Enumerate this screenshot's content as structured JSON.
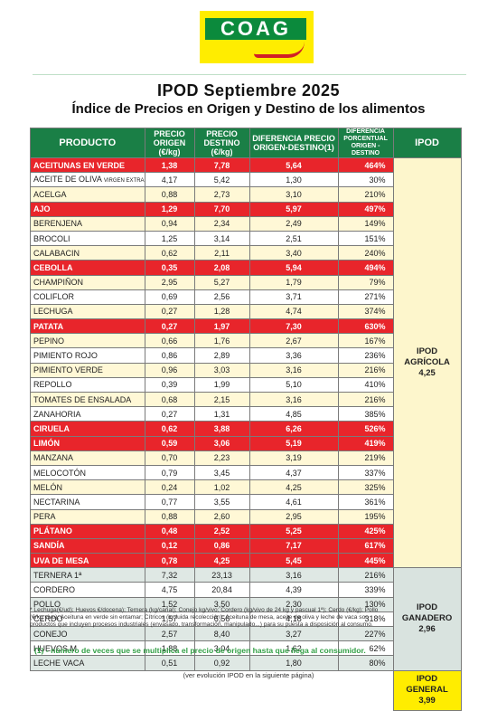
{
  "logo": {
    "text": "COAG"
  },
  "header": {
    "title": "IPOD Septiembre 2025",
    "subtitle": "Índice de Precios en Origen y Destino de los alimentos"
  },
  "table": {
    "columns": {
      "producto": "PRODUCTO",
      "origen": "PRECIO ORIGEN (€/kg)",
      "destino": "PRECIO DESTINO (€/kg)",
      "diferencia": "DIFERENCIA PRECIO ORIGEN-DESTINO(1)",
      "porcentual": "DIFERENCIA PORCENTUAL ORIGEN - DESTINO",
      "ipod": "IPOD"
    },
    "rows": [
      {
        "p": "ACEITUNAS EN VERDE",
        "o": "1,38",
        "d": "7,78",
        "dif": "5,64",
        "pct": "464%",
        "style": "red"
      },
      {
        "p": "ACEITE DE OLIVA",
        "tag": "VIRGEN EXTRA",
        "o": "4,17",
        "d": "5,42",
        "dif": "1,30",
        "pct": "30%",
        "style": "white"
      },
      {
        "p": "ACELGA",
        "o": "0,88",
        "d": "2,73",
        "dif": "3,10",
        "pct": "210%",
        "style": "cream"
      },
      {
        "p": "AJO",
        "o": "1,29",
        "d": "7,70",
        "dif": "5,97",
        "pct": "497%",
        "style": "red"
      },
      {
        "p": "BERENJENA",
        "o": "0,94",
        "d": "2,34",
        "dif": "2,49",
        "pct": "149%",
        "style": "cream"
      },
      {
        "p": "BROCOLI",
        "o": "1,25",
        "d": "3,14",
        "dif": "2,51",
        "pct": "151%",
        "style": "white"
      },
      {
        "p": "CALABACIN",
        "o": "0,62",
        "d": "2,11",
        "dif": "3,40",
        "pct": "240%",
        "style": "cream"
      },
      {
        "p": "CEBOLLA",
        "o": "0,35",
        "d": "2,08",
        "dif": "5,94",
        "pct": "494%",
        "style": "red"
      },
      {
        "p": "CHAMPIÑON",
        "o": "2,95",
        "d": "5,27",
        "dif": "1,79",
        "pct": "79%",
        "style": "cream"
      },
      {
        "p": "COLIFLOR",
        "o": "0,69",
        "d": "2,56",
        "dif": "3,71",
        "pct": "271%",
        "style": "white"
      },
      {
        "p": "LECHUGA",
        "o": "0,27",
        "d": "1,28",
        "dif": "4,74",
        "pct": "374%",
        "style": "cream"
      },
      {
        "p": "PATATA",
        "o": "0,27",
        "d": "1,97",
        "dif": "7,30",
        "pct": "630%",
        "style": "red"
      },
      {
        "p": "PEPINO",
        "o": "0,66",
        "d": "1,76",
        "dif": "2,67",
        "pct": "167%",
        "style": "cream"
      },
      {
        "p": "PIMIENTO ROJO",
        "o": "0,86",
        "d": "2,89",
        "dif": "3,36",
        "pct": "236%",
        "style": "white"
      },
      {
        "p": "PIMIENTO VERDE",
        "o": "0,96",
        "d": "3,03",
        "dif": "3,16",
        "pct": "216%",
        "style": "cream"
      },
      {
        "p": "REPOLLO",
        "o": "0,39",
        "d": "1,99",
        "dif": "5,10",
        "pct": "410%",
        "style": "white"
      },
      {
        "p": "TOMATES DE ENSALADA",
        "o": "0,68",
        "d": "2,15",
        "dif": "3,16",
        "pct": "216%",
        "style": "cream"
      },
      {
        "p": "ZANAHORIA",
        "o": "0,27",
        "d": "1,31",
        "dif": "4,85",
        "pct": "385%",
        "style": "white"
      },
      {
        "p": "CIRUELA",
        "o": "0,62",
        "d": "3,88",
        "dif": "6,26",
        "pct": "526%",
        "style": "red"
      },
      {
        "p": "LIMÓN",
        "o": "0,59",
        "d": "3,06",
        "dif": "5,19",
        "pct": "419%",
        "style": "red"
      },
      {
        "p": "MANZANA",
        "o": "0,70",
        "d": "2,23",
        "dif": "3,19",
        "pct": "219%",
        "style": "cream"
      },
      {
        "p": "MELOCOTÓN",
        "o": "0,79",
        "d": "3,45",
        "dif": "4,37",
        "pct": "337%",
        "style": "white"
      },
      {
        "p": "MELÓN",
        "o": "0,24",
        "d": "1,02",
        "dif": "4,25",
        "pct": "325%",
        "style": "cream"
      },
      {
        "p": "NECTARINA",
        "o": "0,77",
        "d": "3,55",
        "dif": "4,61",
        "pct": "361%",
        "style": "white"
      },
      {
        "p": "PERA",
        "o": "0,88",
        "d": "2,60",
        "dif": "2,95",
        "pct": "195%",
        "style": "cream"
      },
      {
        "p": "PLÁTANO",
        "o": "0,48",
        "d": "2,52",
        "dif": "5,25",
        "pct": "425%",
        "style": "red"
      },
      {
        "p": "SANDÍA",
        "o": "0,12",
        "d": "0,86",
        "dif": "7,17",
        "pct": "617%",
        "style": "red"
      },
      {
        "p": "UVA DE MESA",
        "o": "0,78",
        "d": "4,25",
        "dif": "5,45",
        "pct": "445%",
        "style": "red"
      },
      {
        "p": "TERNERA 1ª",
        "o": "7,32",
        "d": "23,13",
        "dif": "3,16",
        "pct": "216%",
        "style": "grey"
      },
      {
        "p": "CORDERO",
        "o": "4,75",
        "d": "20,84",
        "dif": "4,39",
        "pct": "339%",
        "style": "greyw"
      },
      {
        "p": "POLLO",
        "o": "1,52",
        "d": "3,50",
        "dif": "2,30",
        "pct": "130%",
        "style": "grey"
      },
      {
        "p": "CERDO",
        "o": "1,57",
        "d": "6,56",
        "dif": "4,18",
        "pct": "318%",
        "style": "greyw"
      },
      {
        "p": "CONEJO",
        "o": "2,57",
        "d": "8,40",
        "dif": "3,27",
        "pct": "227%",
        "style": "grey"
      },
      {
        "p": "HUEVOS M",
        "o": "1,88",
        "d": "3,04",
        "dif": "1,62",
        "pct": "62%",
        "style": "greyw"
      },
      {
        "p": "LECHE VACA",
        "o": "0,51",
        "d": "0,92",
        "dif": "1,80",
        "pct": "80%",
        "style": "grey"
      }
    ],
    "groups": {
      "agricola": {
        "line1": "IPOD",
        "line2": "AGRÍCOLA",
        "value": "4,25"
      },
      "ganadero": {
        "line1": "IPOD",
        "line2": "GANADERO",
        "value": "2,96"
      },
      "general": {
        "line1": "IPOD",
        "line2": "GENERAL",
        "value": "3,99"
      }
    }
  },
  "footnote": "* Lechuga(€/ud); Huevos €/docena); Ternera (kg/canal); Conejo kg/vivo; Cordero (kg/vivo de 24 kg y pascual 1ª); Cerdo (€/kg); Pollo (€/kg vivo); Aceituna en verde sin entamar; Cítricos (incluida recolección). Aceituna de mesa, aceite de oliva y leche de vaca son productos que incluyen procesos industriales (envasado, transformación, manipulado...) para su puesta a disposición al consumo.",
  "note1": "(1) - número de veces que se multiplica el precio de origen hasta que llega al consumidor.",
  "page_note": "(ver evolución IPOD en la siguiente página)",
  "colors": {
    "header_green": "#1a7f46",
    "highlight_red": "#e8252b",
    "cream": "#fff8d6",
    "grey": "#dfe8e4",
    "general_yellow": "#ffed00"
  }
}
